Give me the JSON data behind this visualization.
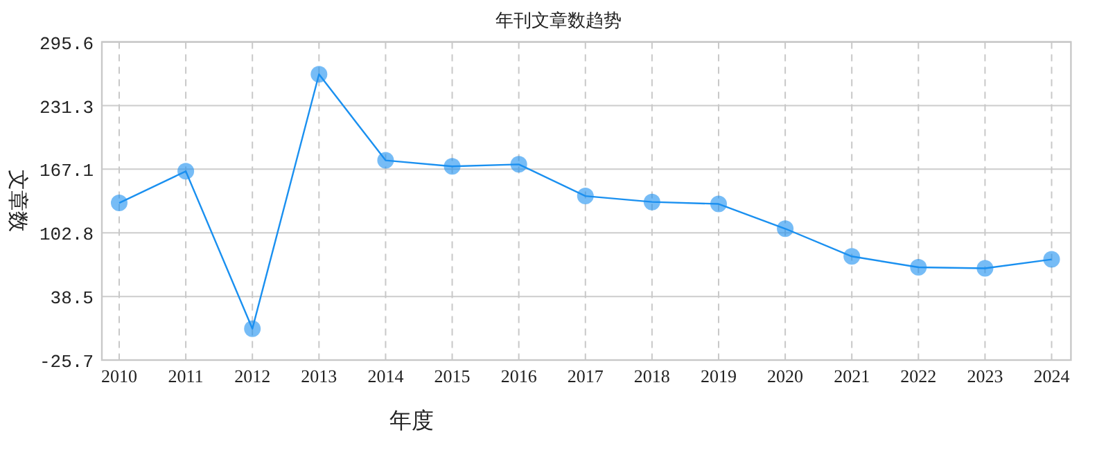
{
  "chart_data": {
    "type": "line",
    "title": "年刊文章数趋势",
    "xlabel": "年度",
    "ylabel": "文章数",
    "categories": [
      "2010",
      "2011",
      "2012",
      "2013",
      "2014",
      "2015",
      "2016",
      "2017",
      "2018",
      "2019",
      "2020",
      "2021",
      "2022",
      "2023",
      "2024"
    ],
    "series": [
      {
        "color": "#1a90f0",
        "values": [
          133,
          165,
          6,
          263,
          176,
          170,
          172,
          140,
          134,
          132,
          107,
          79,
          68,
          67,
          76
        ]
      }
    ],
    "ylim": [
      -25.7,
      295.6
    ],
    "yticks": [
      -25.7,
      38.5,
      102.8,
      167.1,
      231.3,
      295.6
    ],
    "grid": true,
    "marker": "circle",
    "line_style": "solid"
  }
}
